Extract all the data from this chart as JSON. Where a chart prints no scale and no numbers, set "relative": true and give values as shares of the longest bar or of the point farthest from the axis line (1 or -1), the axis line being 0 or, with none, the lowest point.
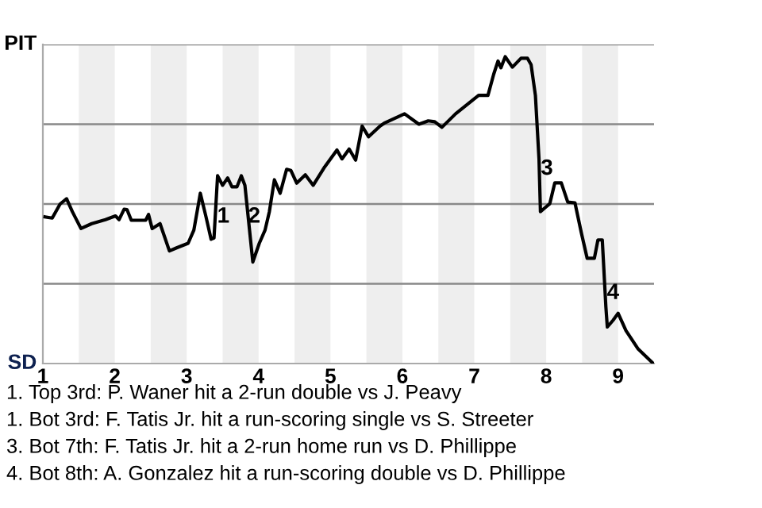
{
  "chart_data": {
    "type": "line",
    "relative": true,
    "x": [
      1.03,
      1.13,
      1.24,
      1.33,
      1.41,
      1.53,
      1.68,
      1.87,
      2.01,
      2.06,
      2.13,
      2.17,
      2.23,
      2.43,
      2.47,
      2.52,
      2.63,
      2.76,
      2.86,
      3.02,
      3.1,
      3.19,
      3.27,
      3.34,
      3.38,
      3.43,
      3.5,
      3.57,
      3.63,
      3.7,
      3.76,
      3.81,
      3.92,
      4.01,
      4.09,
      4.15,
      4.22,
      4.3,
      4.39,
      4.45,
      4.53,
      4.65,
      4.76,
      4.92,
      5.09,
      5.16,
      5.26,
      5.35,
      5.44,
      5.53,
      5.69,
      5.76,
      6.03,
      6.23,
      6.36,
      6.45,
      6.55,
      6.74,
      7.06,
      7.19,
      7.27,
      7.33,
      7.37,
      7.43,
      7.53,
      7.65,
      7.74,
      7.79,
      7.85,
      7.9,
      7.92,
      7.98,
      8.05,
      8.12,
      8.21,
      8.3,
      8.4,
      8.49,
      8.57,
      8.67,
      8.72,
      8.78,
      8.83,
      8.85,
      8.93,
      9.0,
      9.11,
      9.28,
      9.49
    ],
    "series": [
      {
        "color": "#000000",
        "values": [
          0.478,
          0.474,
          0.52,
          0.537,
          0.495,
          0.44,
          0.456,
          0.469,
          0.481,
          0.469,
          0.503,
          0.502,
          0.467,
          0.467,
          0.486,
          0.44,
          0.456,
          0.367,
          0.377,
          0.392,
          0.435,
          0.555,
          0.477,
          0.405,
          0.409,
          0.612,
          0.581,
          0.605,
          0.576,
          0.576,
          0.612,
          0.581,
          0.331,
          0.392,
          0.435,
          0.495,
          0.599,
          0.555,
          0.633,
          0.629,
          0.588,
          0.615,
          0.581,
          0.641,
          0.696,
          0.667,
          0.699,
          0.663,
          0.774,
          0.739,
          0.774,
          0.785,
          0.814,
          0.78,
          0.791,
          0.788,
          0.77,
          0.814,
          0.874,
          0.874,
          0.943,
          0.986,
          0.964,
          1,
          0.966,
          0.995,
          0.995,
          0.974,
          0.874,
          0.667,
          0.495,
          0.507,
          0.521,
          0.589,
          0.589,
          0.526,
          0.524,
          0.425,
          0.343,
          0.343,
          0.403,
          0.403,
          0.185,
          0.119,
          0.141,
          0.164,
          0.107,
          0.047,
          0
        ]
      }
    ],
    "xlim": [
      1,
      9.5
    ],
    "xticks": [
      1,
      2,
      3,
      4,
      5,
      6,
      7,
      8,
      9
    ],
    "line_style": "solid",
    "ref_lines": [
      {
        "axis": "y",
        "value": 0.26,
        "color": "#888888"
      },
      {
        "axis": "y",
        "value": 0.52,
        "color": "#888888"
      },
      {
        "axis": "y",
        "value": 0.78,
        "color": "#888888"
      },
      {
        "axis": "y",
        "value": 1.04,
        "color": "#888888"
      }
    ],
    "bands": [
      {
        "axis": "x",
        "from": 1.5,
        "to": 2,
        "color": "#eeeeee"
      },
      {
        "axis": "x",
        "from": 2.5,
        "to": 3,
        "color": "#eeeeee"
      },
      {
        "axis": "x",
        "from": 3.5,
        "to": 4,
        "color": "#eeeeee"
      },
      {
        "axis": "x",
        "from": 4.5,
        "to": 5,
        "color": "#eeeeee"
      },
      {
        "axis": "x",
        "from": 5.5,
        "to": 6,
        "color": "#eeeeee"
      },
      {
        "axis": "x",
        "from": 6.5,
        "to": 7,
        "color": "#eeeeee"
      },
      {
        "axis": "x",
        "from": 7.5,
        "to": 8,
        "color": "#eeeeee"
      },
      {
        "axis": "x",
        "from": 8.5,
        "to": 9,
        "color": "#eeeeee"
      }
    ],
    "annotations": [
      "PIT",
      "SD",
      {
        "text": "1",
        "x": 3.51,
        "y": 0.478
      },
      {
        "text": "2",
        "x": 3.94,
        "y": 0.478
      },
      {
        "text": "3",
        "x": 8.01,
        "y": 0.634
      },
      {
        "text": "4",
        "x": 8.93,
        "y": 0.229
      },
      "1. Top 3rd: P. Waner hit a 2-run double vs J. Peavy",
      "1. Bot 3rd: F. Tatis Jr. hit a run-scoring single vs S. Streeter",
      "3. Bot 7th: F. Tatis Jr. hit a 2-run home run vs D. Phillippe",
      "4. Bot 8th: A. Gonzalez hit a run-scoring double vs D. Phillippe"
    ]
  }
}
